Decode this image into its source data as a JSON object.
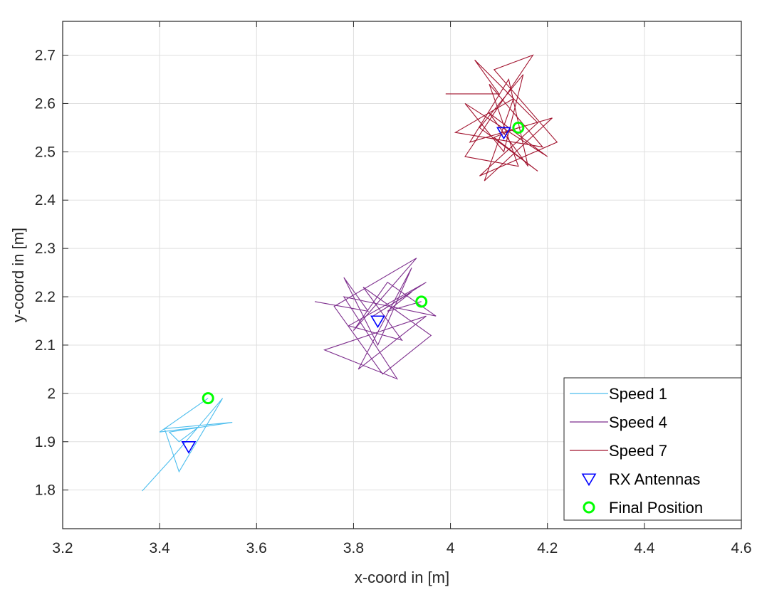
{
  "chart_data": {
    "type": "line",
    "xlabel": "x-coord in [m]",
    "ylabel": "y-coord in [m]",
    "xlim": [
      3.2,
      4.6
    ],
    "ylim": [
      1.72,
      2.77
    ],
    "xticks": [
      "3.2",
      "3.4",
      "3.6",
      "3.8",
      "4",
      "4.2",
      "4.4",
      "4.6"
    ],
    "yticks": [
      "1.8",
      "1.9",
      "2",
      "2.1",
      "2.2",
      "2.3",
      "2.4",
      "2.5",
      "2.6",
      "2.7"
    ],
    "grid": true,
    "legend_position": "bottom-right",
    "series": [
      {
        "name": "Speed 1",
        "color": "#4dbeee",
        "x": [
          3.364,
          3.42,
          3.53,
          3.44,
          3.41,
          3.55,
          3.42,
          3.44,
          3.48,
          3.4,
          3.5
        ],
        "y": [
          1.798,
          1.86,
          1.99,
          1.838,
          1.927,
          1.94,
          1.92,
          1.9,
          1.93,
          1.92,
          1.99
        ]
      },
      {
        "name": "Speed 4",
        "color": "#7e2f8e",
        "x": [
          3.72,
          3.83,
          3.78,
          3.85,
          3.92,
          3.81,
          3.95,
          3.74,
          3.89,
          3.78,
          3.97,
          3.87,
          3.8,
          3.93,
          3.76,
          3.86,
          3.96,
          3.82,
          3.9,
          3.79,
          3.95,
          3.84,
          3.92,
          3.87,
          3.94
        ],
        "y": [
          2.19,
          2.17,
          2.24,
          2.1,
          2.26,
          2.05,
          2.16,
          2.09,
          2.03,
          2.2,
          2.16,
          2.23,
          2.13,
          2.28,
          2.18,
          2.04,
          2.12,
          2.22,
          2.11,
          2.14,
          2.23,
          2.16,
          2.21,
          2.17,
          2.19
        ]
      },
      {
        "name": "Speed 7",
        "color": "#a2142f",
        "x": [
          3.99,
          4.1,
          4.05,
          4.18,
          4.06,
          4.22,
          4.09,
          4.17,
          4.03,
          4.14,
          4.08,
          4.19,
          4.01,
          4.13,
          4.07,
          4.21,
          4.04,
          4.12,
          4.16,
          4.08,
          4.2,
          4.03,
          4.11,
          4.15,
          4.06,
          4.18,
          4.09,
          4.14
        ],
        "y": [
          2.62,
          2.62,
          2.69,
          2.56,
          2.45,
          2.52,
          2.67,
          2.7,
          2.49,
          2.47,
          2.64,
          2.51,
          2.54,
          2.61,
          2.44,
          2.57,
          2.52,
          2.65,
          2.47,
          2.58,
          2.49,
          2.6,
          2.5,
          2.66,
          2.55,
          2.46,
          2.53,
          2.55
        ]
      },
      {
        "name": "RX Antennas",
        "color": "#0000ff",
        "marker": "triangle-down",
        "x": [
          3.46,
          3.85,
          4.11
        ],
        "y": [
          1.89,
          2.15,
          2.54
        ]
      },
      {
        "name": "Final Position",
        "color": "#00ff00",
        "marker": "circle",
        "x": [
          3.5,
          3.94,
          4.14
        ],
        "y": [
          1.99,
          2.19,
          2.55
        ]
      }
    ]
  }
}
